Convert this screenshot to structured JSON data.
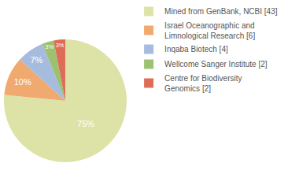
{
  "chart_data": {
    "type": "pie",
    "categories": [
      "Mined from GenBank, NCBI [43]",
      "Israel Oceanographic and Limnological Research [6]",
      "Inqaba Biotech [4]",
      "Wellcome Sanger Institute [2]",
      "Centre for Biodiversity Genomics [2]"
    ],
    "values": [
      75,
      10,
      7,
      3,
      3
    ],
    "value_labels": [
      "75%",
      "10%",
      "7%",
      "3%",
      "3%"
    ],
    "colors": [
      "#dde3a6",
      "#f0a96f",
      "#a6bcdf",
      "#9cc271",
      "#dd6d57"
    ],
    "data_labels": true,
    "legend": "upper right"
  }
}
